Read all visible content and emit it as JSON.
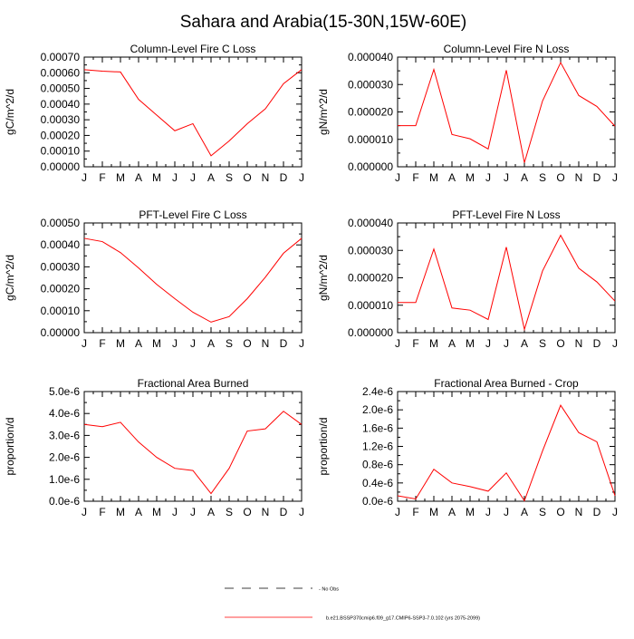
{
  "page_title": "Sahara and Arabia(15-30N,15W-60E)",
  "legend": {
    "obs_label": "No Obs",
    "model_label": "b.e21.BSSP370cmip6.f09_g17.CMIP6-SSP3-7.0.102 (yrs 2075-2099)",
    "obs_color": "#000000",
    "model_color": "#ff0000"
  },
  "chart_data": [
    {
      "type": "line",
      "title": "Column-Level Fire C Loss",
      "ylabel": "gC/m^2/d",
      "categories": [
        "J",
        "F",
        "M",
        "A",
        "M",
        "J",
        "J",
        "A",
        "S",
        "O",
        "N",
        "D",
        "J"
      ],
      "ylim": [
        0,
        0.0007
      ],
      "yticks": [
        "0.00000",
        "0.00010",
        "0.00020",
        "0.00030",
        "0.00040",
        "0.00050",
        "0.00060",
        "0.00070"
      ],
      "series": [
        {
          "values": [
            0.00062,
            0.00061,
            0.000605,
            0.00043,
            0.00033,
            0.00023,
            0.000275,
            7e-05,
            0.000165,
            0.000275,
            0.00037,
            0.00053,
            0.00062
          ]
        }
      ]
    },
    {
      "type": "line",
      "title": "Column-Level Fire N Loss",
      "ylabel": "gN/m^2/d",
      "categories": [
        "J",
        "F",
        "M",
        "A",
        "M",
        "J",
        "J",
        "A",
        "S",
        "O",
        "N",
        "D",
        "J"
      ],
      "ylim": [
        0,
        4e-05
      ],
      "yticks": [
        "0.000000",
        "0.000010",
        "0.000020",
        "0.000030",
        "0.000040"
      ],
      "series": [
        {
          "values": [
            1.5e-05,
            1.5e-05,
            3.55e-05,
            1.18e-05,
            1.02e-05,
            6.5e-06,
            3.52e-05,
            1.5e-06,
            2.4e-05,
            3.8e-05,
            2.6e-05,
            2.2e-05,
            1.48e-05
          ]
        }
      ]
    },
    {
      "type": "line",
      "title": "PFT-Level Fire C Loss",
      "ylabel": "gC/m^2/d",
      "categories": [
        "J",
        "F",
        "M",
        "A",
        "M",
        "J",
        "J",
        "A",
        "S",
        "O",
        "N",
        "D",
        "J"
      ],
      "ylim": [
        0,
        0.0005
      ],
      "yticks": [
        "0.00000",
        "0.00010",
        "0.00020",
        "0.00030",
        "0.00040",
        "0.00050"
      ],
      "series": [
        {
          "values": [
            0.00043,
            0.000415,
            0.000365,
            0.000295,
            0.00022,
            0.000155,
            9.3e-05,
            4.8e-05,
            7.3e-05,
            0.000155,
            0.000253,
            0.000362,
            0.00043
          ]
        }
      ]
    },
    {
      "type": "line",
      "title": "PFT-Level Fire N Loss",
      "ylabel": "gN/m^2/d",
      "categories": [
        "J",
        "F",
        "M",
        "A",
        "M",
        "J",
        "J",
        "A",
        "S",
        "O",
        "N",
        "D",
        "J"
      ],
      "ylim": [
        0,
        4e-05
      ],
      "yticks": [
        "0.000000",
        "0.000010",
        "0.000020",
        "0.000030",
        "0.000040"
      ],
      "series": [
        {
          "values": [
            1.1e-05,
            1.1e-05,
            3.05e-05,
            9e-06,
            8.2e-06,
            4.8e-06,
            3.12e-05,
            1.2e-06,
            2.25e-05,
            3.55e-05,
            2.35e-05,
            1.85e-05,
            1.15e-05
          ]
        }
      ]
    },
    {
      "type": "line",
      "title": "Fractional Area Burned",
      "ylabel": "proportion/d",
      "categories": [
        "J",
        "F",
        "M",
        "A",
        "M",
        "J",
        "J",
        "A",
        "S",
        "O",
        "N",
        "D",
        "J"
      ],
      "ylim": [
        0,
        5e-06
      ],
      "yticks": [
        "0.0e-6",
        "1.0e-6",
        "2.0e-6",
        "3.0e-6",
        "4.0e-6",
        "5.0e-6"
      ],
      "series": [
        {
          "values": [
            3.5e-06,
            3.4e-06,
            3.6e-06,
            2.7e-06,
            2e-06,
            1.5e-06,
            1.4e-06,
            3.5e-07,
            1.5e-06,
            3.2e-06,
            3.3e-06,
            4.1e-06,
            3.5e-06
          ]
        }
      ]
    },
    {
      "type": "line",
      "title": "Fractional Area Burned - Crop",
      "ylabel": "proportion/d",
      "categories": [
        "J",
        "F",
        "M",
        "A",
        "M",
        "J",
        "J",
        "A",
        "S",
        "O",
        "N",
        "D",
        "J"
      ],
      "ylim": [
        0,
        2.4e-06
      ],
      "yticks": [
        "0.0e-6",
        "0.4e-6",
        "0.8e-6",
        "1.2e-6",
        "1.6e-6",
        "2.0e-6",
        "2.4e-6"
      ],
      "series": [
        {
          "values": [
            1.2e-07,
            5e-08,
            7e-07,
            4e-07,
            3.2e-07,
            2.2e-07,
            6.2e-07,
            1e-08,
            1.1e-06,
            2.1e-06,
            1.5e-06,
            1.3e-06,
            1.2e-07
          ]
        }
      ]
    }
  ]
}
